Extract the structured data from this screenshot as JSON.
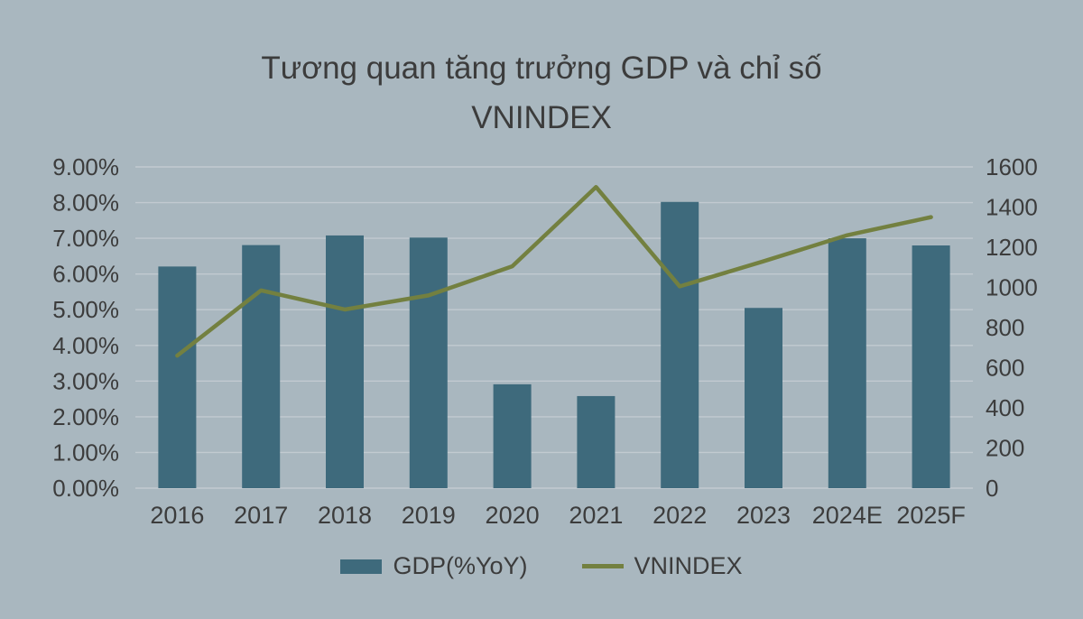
{
  "title_line1": "Tương quan tăng trưởng GDP và chỉ số",
  "title_line2": "VNINDEX",
  "colors": {
    "background": "#a9b7bf",
    "bar": "#3e6a7c",
    "line": "#738040",
    "text": "#3c3c3c",
    "gridline": "#c2cad0"
  },
  "chart_data": {
    "type": "bar+line",
    "title": "Tương quan tăng trưởng GDP và chỉ số VNINDEX",
    "categories": [
      "2016",
      "2017",
      "2018",
      "2019",
      "2020",
      "2021",
      "2022",
      "2023",
      "2024E",
      "2025F"
    ],
    "series": [
      {
        "name": "GDP(%YoY)",
        "type": "bar",
        "axis": "left",
        "values": [
          6.21,
          6.81,
          7.08,
          7.02,
          2.91,
          2.58,
          8.02,
          5.05,
          7.0,
          6.8
        ]
      },
      {
        "name": "VNINDEX",
        "type": "line",
        "axis": "right",
        "values": [
          660,
          985,
          890,
          960,
          1105,
          1500,
          1005,
          1130,
          1260,
          1350
        ]
      }
    ],
    "left_axis": {
      "min": 0,
      "max": 9,
      "step": 1,
      "ticks": [
        "0.00%",
        "1.00%",
        "2.00%",
        "3.00%",
        "4.00%",
        "5.00%",
        "6.00%",
        "7.00%",
        "8.00%",
        "9.00%"
      ]
    },
    "right_axis": {
      "min": 0,
      "max": 1600,
      "step": 200,
      "ticks": [
        "0",
        "200",
        "400",
        "600",
        "800",
        "1000",
        "1200",
        "1400",
        "1600"
      ]
    },
    "legend": [
      {
        "label": "GDP(%YoY)",
        "swatch": "bar"
      },
      {
        "label": "VNINDEX",
        "swatch": "line"
      }
    ],
    "grid": true,
    "legend_position": "bottom"
  }
}
